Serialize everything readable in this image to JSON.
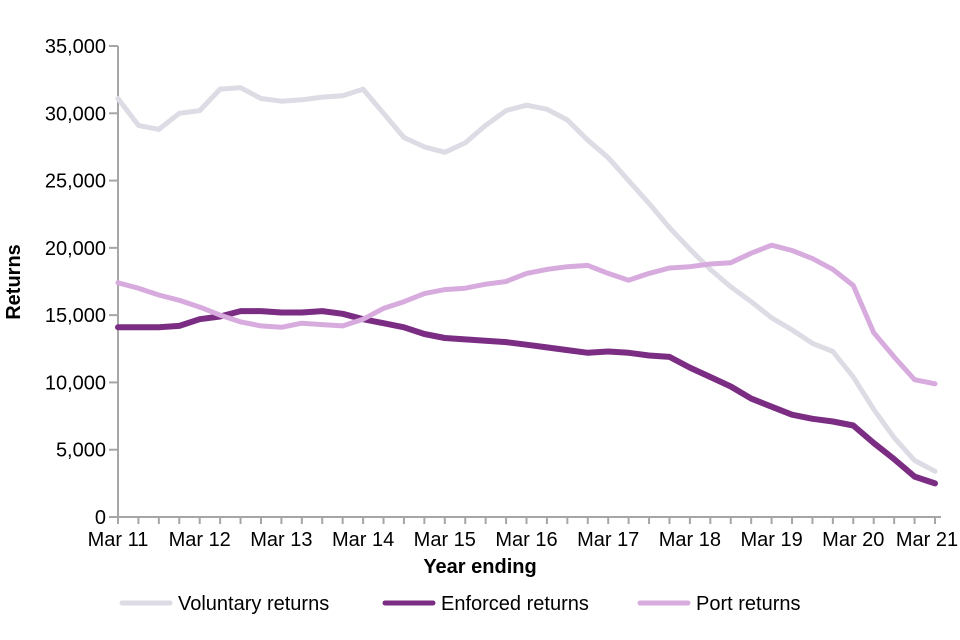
{
  "page": {
    "background": "#ffffff",
    "description": "Line chart of returns from the UK by type, rolling years ending Mar 2011 to Mar 2021"
  },
  "chart_data": {
    "type": "line",
    "title": "",
    "xlabel": "Year ending",
    "ylabel": "Returns",
    "ylim": [
      0,
      35000
    ],
    "y_tick_interval": 5000,
    "y_tick_labels": [
      "0",
      "5,000",
      "10,000",
      "15,000",
      "20,000",
      "25,000",
      "30,000",
      "35,000"
    ],
    "x_tick_labels": [
      "Mar 11",
      "Mar 12",
      "Mar 13",
      "Mar 14",
      "Mar 15",
      "Mar 16",
      "Mar 17",
      "Mar 18",
      "Mar 19",
      "Mar 20",
      "Mar 21"
    ],
    "x_points_per_year": 4,
    "grid": false,
    "legend_position": "bottom",
    "axis_color": "#a6a6a6",
    "text_color": "#000000",
    "series": [
      {
        "name": "Voluntary returns",
        "color": "#dddbe4",
        "values": [
          31100,
          29100,
          28800,
          30000,
          30200,
          31800,
          31900,
          31100,
          30900,
          31000,
          31200,
          31300,
          31800,
          30000,
          28200,
          27500,
          27100,
          27800,
          29100,
          30200,
          30600,
          30300,
          29500,
          28000,
          26700,
          25000,
          23300,
          21500,
          19900,
          18400,
          17100,
          16000,
          14800,
          13900,
          12900,
          12300,
          10400,
          8000,
          5900,
          4200,
          3400
        ]
      },
      {
        "name": "Enforced returns",
        "color": "#7b2c83",
        "values": [
          14100,
          14100,
          14100,
          14200,
          14700,
          14900,
          15300,
          15300,
          15200,
          15200,
          15300,
          15100,
          14700,
          14400,
          14100,
          13600,
          13300,
          13200,
          13100,
          13000,
          12800,
          12600,
          12400,
          12200,
          12300,
          12200,
          12000,
          11900,
          11100,
          10400,
          9700,
          8800,
          8200,
          7600,
          7300,
          7100,
          6800,
          5500,
          4300,
          3000,
          2500
        ]
      },
      {
        "name": "Port returns",
        "color": "#d8abdf",
        "values": [
          17400,
          17000,
          16500,
          16100,
          15600,
          15000,
          14500,
          14200,
          14100,
          14400,
          14300,
          14200,
          14700,
          15500,
          16000,
          16600,
          16900,
          17000,
          17300,
          17500,
          18100,
          18400,
          18600,
          18700,
          18100,
          17600,
          18100,
          18500,
          18600,
          18800,
          18900,
          19600,
          20200,
          19800,
          19200,
          18400,
          17200,
          13700,
          11900,
          10200,
          9900
        ]
      }
    ]
  }
}
